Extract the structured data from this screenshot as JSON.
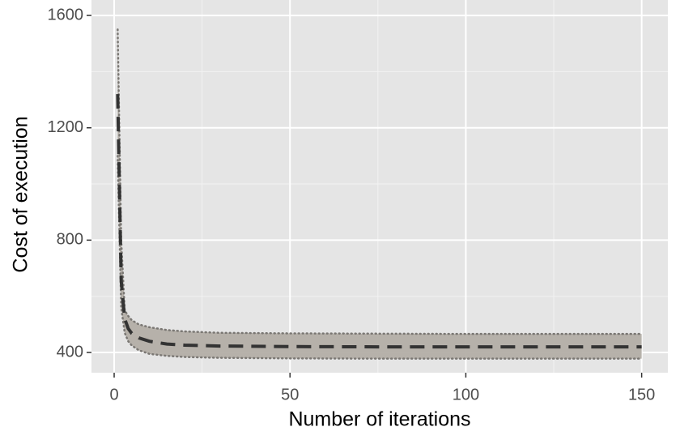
{
  "chart_data": {
    "type": "line",
    "x_label": "Number of iterations",
    "y_label": "Cost of execution",
    "x": [
      1,
      2,
      3,
      4,
      5,
      7,
      10,
      15,
      20,
      30,
      50,
      75,
      100,
      125,
      150
    ],
    "series": [
      {
        "color": "#333333",
        "dash": "dashed",
        "values": [
          1320,
          655,
          520,
          485,
          468,
          452,
          440,
          430,
          426,
          423,
          421,
          420,
          420,
          420,
          420
        ]
      }
    ],
    "band": {
      "color": "#b3aea6",
      "line_color": "#7a7773",
      "upper": [
        1550,
        800,
        550,
        530,
        515,
        500,
        490,
        480,
        475,
        470,
        468,
        467,
        466,
        466,
        466
      ],
      "lower": [
        1100,
        560,
        470,
        440,
        425,
        408,
        395,
        388,
        384,
        381,
        379,
        378,
        378,
        378,
        378
      ]
    },
    "xlim": [
      -6.45,
      157.45
    ],
    "ylim": [
      328,
      1655
    ],
    "xticks": [
      0,
      50,
      100,
      150
    ],
    "yticks": [
      400,
      800,
      1200,
      1600
    ],
    "xminor": [
      25,
      75,
      125
    ],
    "yminor": [
      600,
      1000,
      1400
    ],
    "grid": true
  }
}
